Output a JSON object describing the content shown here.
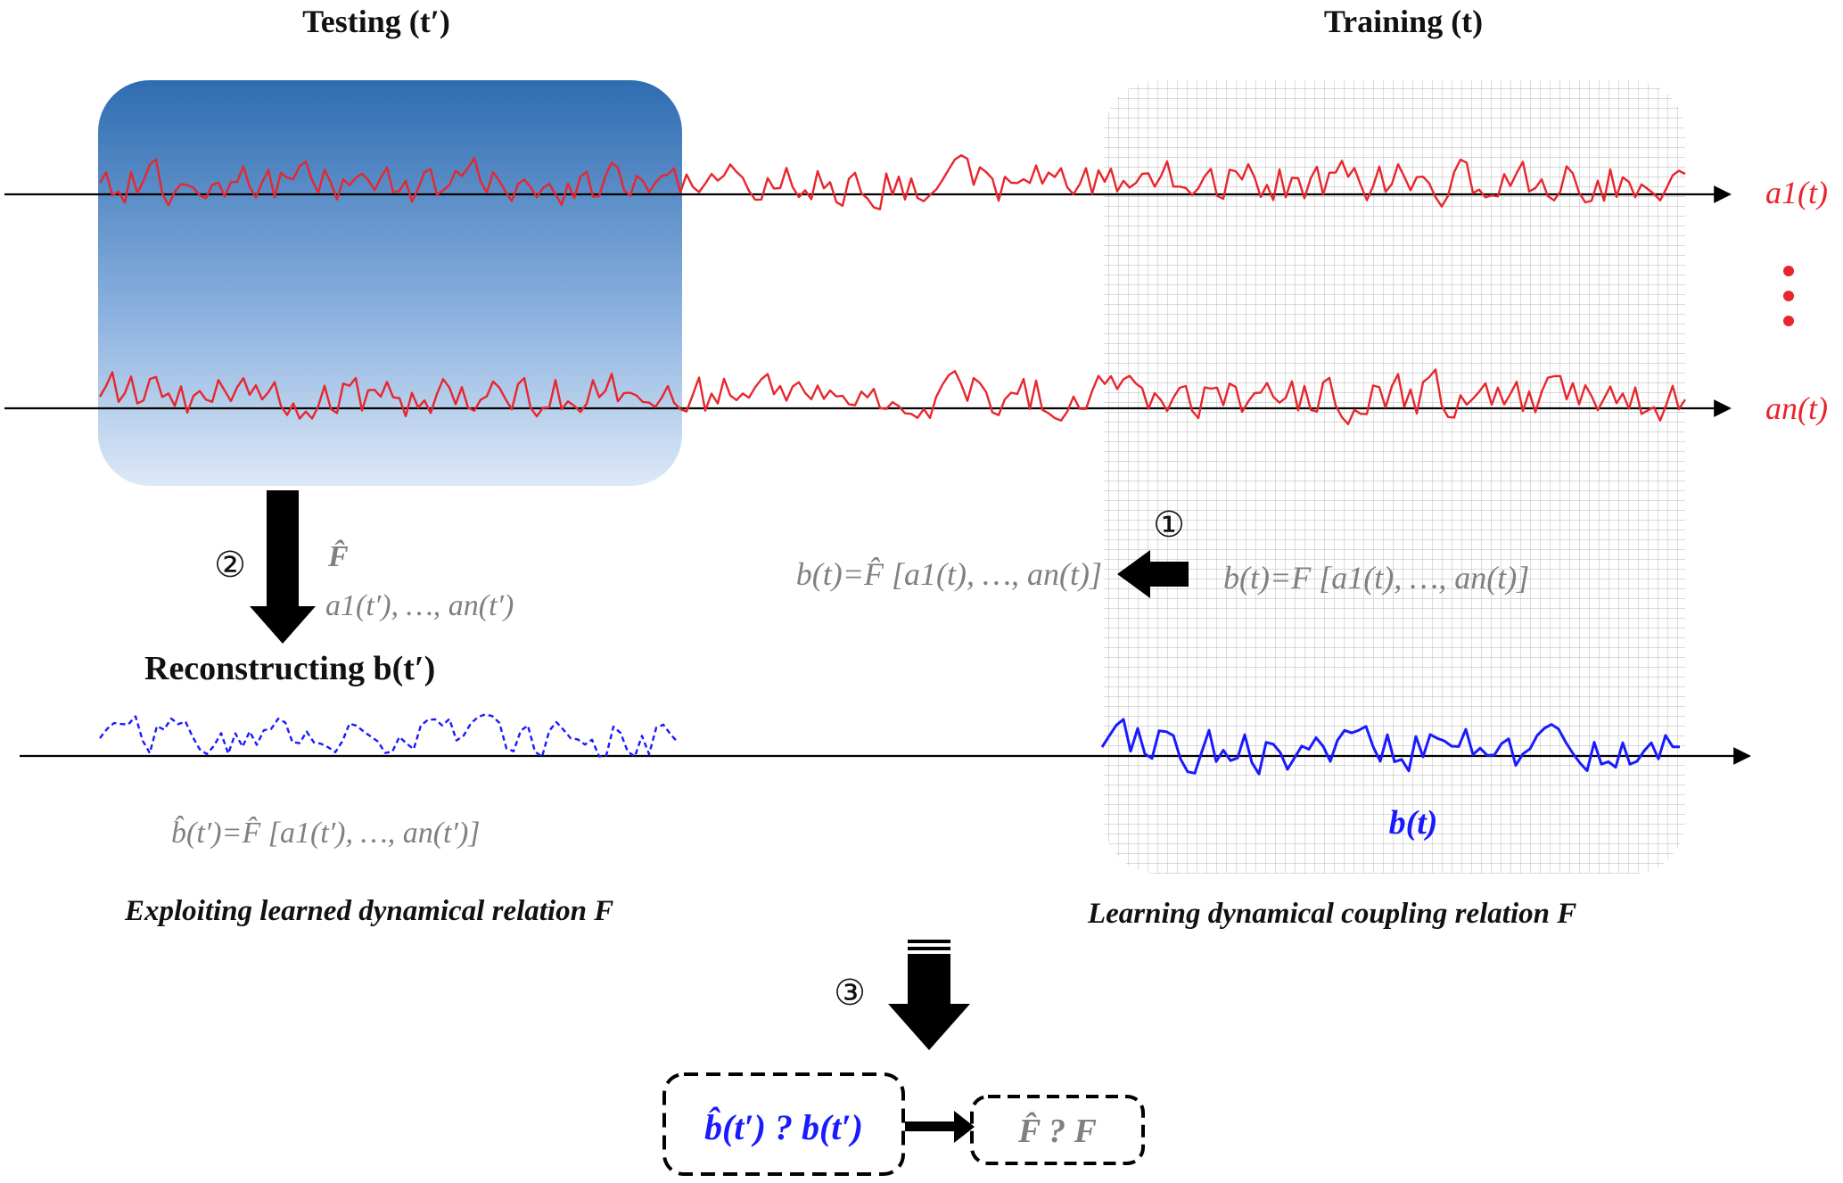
{
  "headers": {
    "testing": "Testing (t′)",
    "training": "Training (t)"
  },
  "series_labels": {
    "a1": "a1(t)",
    "an": "an(t)",
    "b": "b(t)"
  },
  "steps": {
    "one": "①",
    "two": "②",
    "three": "③"
  },
  "equations": {
    "training_relation": "b(t)=F [a1(t), …, an(t)]",
    "learned_relation": "b(t)=F̂ [a1(t), …, an(t)]",
    "f_hat": "F̂",
    "test_inputs": "a1(t′), …, an(t′)",
    "reconstruction": "b̂(t′)=F̂ [a1(t′), …, an(t′)]"
  },
  "captions": {
    "reconstructing": "Reconstructing b(t′)",
    "exploiting": "Exploiting learned dynamical relation F",
    "learning": "Learning dynamical coupling relation F"
  },
  "comparison": {
    "left": "b̂(t′) ? b(t′)",
    "right": "F̂ ? F"
  },
  "colors": {
    "signal_red": "#e8262d",
    "signal_blue": "#1a1aff",
    "equation_gray": "#808080",
    "testing_gradient_top": "#2e6cb1",
    "testing_gradient_bottom": "#dde9f7",
    "training_grid": "#c8c8c8"
  }
}
